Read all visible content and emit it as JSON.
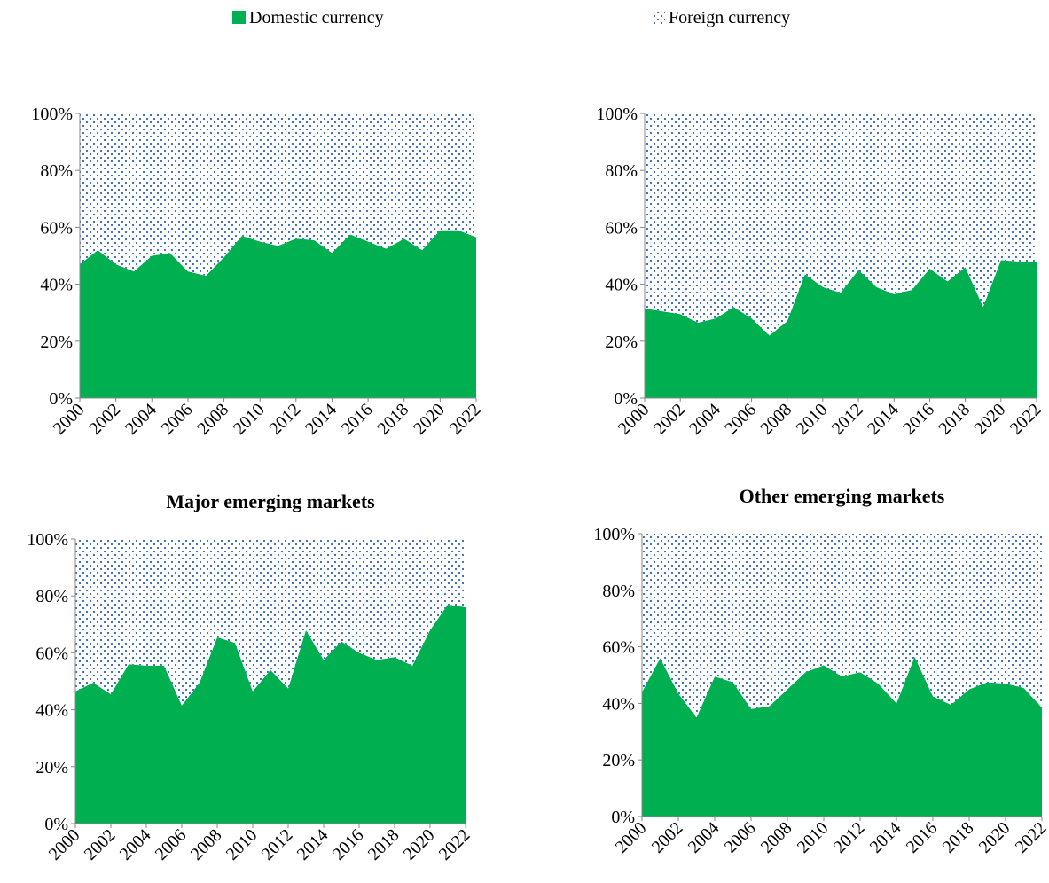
{
  "chart_data": [
    {
      "type": "area",
      "x": [
        2000,
        2001,
        2002,
        2003,
        2004,
        2005,
        2006,
        2007,
        2008,
        2009,
        2010,
        2011,
        2012,
        2013,
        2014,
        2015,
        2016,
        2017,
        2018,
        2019,
        2020,
        2021,
        2022
      ],
      "series": [
        {
          "name": "Domestic currency",
          "color": "#00b050",
          "values": [
            47,
            52,
            47,
            44.5,
            50,
            51,
            44.5,
            43,
            49.5,
            57,
            55,
            53.5,
            56,
            55.5,
            51,
            57.5,
            55,
            52.5,
            56,
            52,
            59,
            59,
            56.5
          ]
        },
        {
          "name": "Foreign currency",
          "color": "#4472c4",
          "values": [
            53,
            48,
            53,
            55.5,
            50,
            49,
            55.5,
            57,
            50.5,
            43,
            45,
            46.5,
            44,
            44.5,
            49,
            42.5,
            45,
            47.5,
            44,
            48,
            41,
            41,
            43.5
          ]
        }
      ],
      "xlim": [
        2000,
        2022
      ],
      "xticks": [
        2000,
        2002,
        2004,
        2006,
        2008,
        2010,
        2012,
        2014,
        2016,
        2018,
        2020,
        2022
      ],
      "ylim": [
        0,
        100
      ],
      "yticks": [
        {
          "value": 0,
          "label": "0%"
        },
        {
          "value": 20,
          "label": "20%"
        },
        {
          "value": 40,
          "label": "40%"
        },
        {
          "value": 60,
          "label": "60%"
        },
        {
          "value": 80,
          "label": "80%"
        },
        {
          "value": 100,
          "label": "100%"
        }
      ],
      "stacked": true
    },
    {
      "type": "area",
      "x": [
        2000,
        2001,
        2002,
        2003,
        2004,
        2005,
        2006,
        2007,
        2008,
        2009,
        2010,
        2011,
        2012,
        2013,
        2014,
        2015,
        2016,
        2017,
        2018,
        2019,
        2020,
        2021,
        2022
      ],
      "series": [
        {
          "color": "#00b050",
          "values": [
            31.5,
            30.5,
            29.5,
            26.5,
            28,
            32,
            28,
            22,
            27,
            43.5,
            39,
            37,
            45,
            39,
            36.5,
            38,
            45.5,
            41,
            46,
            32,
            48.5,
            48,
            48
          ]
        },
        {
          "color": "#4472c4",
          "values": [
            68.5,
            69.5,
            70.5,
            73.5,
            72,
            68,
            72,
            78,
            73,
            56.5,
            61,
            63,
            55,
            61,
            63.5,
            62,
            54.5,
            59,
            54,
            68,
            51.5,
            52,
            52
          ]
        }
      ],
      "xlim": [
        2000,
        2022
      ],
      "xticks": [
        2000,
        2002,
        2004,
        2006,
        2008,
        2010,
        2012,
        2014,
        2016,
        2018,
        2020,
        2022
      ],
      "ylim": [
        0,
        100
      ],
      "yticks": [
        {
          "value": 0,
          "label": "0%"
        },
        {
          "value": 20,
          "label": "20%"
        },
        {
          "value": 40,
          "label": "40%"
        },
        {
          "value": 60,
          "label": "60%"
        },
        {
          "value": 80,
          "label": "80%"
        },
        {
          "value": 100,
          "label": "100%"
        }
      ],
      "stacked": true
    },
    {
      "type": "area",
      "title": "Major emerging markets",
      "x": [
        2000,
        2001,
        2002,
        2003,
        2004,
        2005,
        2006,
        2007,
        2008,
        2009,
        2010,
        2011,
        2012,
        2013,
        2014,
        2015,
        2016,
        2017,
        2018,
        2019,
        2020,
        2021,
        2022
      ],
      "series": [
        {
          "color": "#00b050",
          "values": [
            46.5,
            49.5,
            45.5,
            56,
            55.5,
            55.5,
            41.5,
            49.5,
            65.5,
            63.5,
            46.5,
            54,
            47.5,
            68,
            57.5,
            64,
            60,
            57.5,
            58.5,
            55.5,
            68,
            77,
            76
          ]
        },
        {
          "color": "#4472c4",
          "values": [
            53.5,
            50.5,
            54.5,
            44,
            44.5,
            44.5,
            58.5,
            50.5,
            34.5,
            36.5,
            53.5,
            46,
            52.5,
            32,
            42.5,
            36,
            40,
            42.5,
            41.5,
            44.5,
            32,
            23,
            24
          ]
        }
      ],
      "xlim": [
        2000,
        2022
      ],
      "xticks": [
        2000,
        2002,
        2004,
        2006,
        2008,
        2010,
        2012,
        2014,
        2016,
        2018,
        2020,
        2022
      ],
      "ylim": [
        0,
        100
      ],
      "yticks": [
        {
          "value": 0,
          "label": "0%"
        },
        {
          "value": 20,
          "label": "20%"
        },
        {
          "value": 40,
          "label": "40%"
        },
        {
          "value": 60,
          "label": "60%"
        },
        {
          "value": 80,
          "label": "80%"
        },
        {
          "value": 100,
          "label": "100%"
        }
      ],
      "stacked": true
    },
    {
      "type": "area",
      "title": "Other emerging markets",
      "x": [
        2000,
        2001,
        2002,
        2003,
        2004,
        2005,
        2006,
        2007,
        2008,
        2009,
        2010,
        2011,
        2012,
        2013,
        2014,
        2015,
        2016,
        2017,
        2018,
        2019,
        2020,
        2021,
        2022
      ],
      "series": [
        {
          "color": "#00b050",
          "values": [
            44,
            56,
            43.5,
            35,
            49.5,
            47.5,
            38,
            39,
            45,
            51,
            53.5,
            49.5,
            51,
            47,
            40,
            56.5,
            42.5,
            39.5,
            45,
            47.5,
            47,
            45.5,
            38.5
          ]
        },
        {
          "color": "#4472c4",
          "values": [
            56,
            44,
            56.5,
            65,
            50.5,
            52.5,
            62,
            61,
            55,
            49,
            46.5,
            50.5,
            49,
            53,
            60,
            43.5,
            57.5,
            60.5,
            55,
            52.5,
            53,
            54.5,
            61.5
          ]
        }
      ],
      "xlim": [
        2000,
        2022
      ],
      "xticks": [
        2000,
        2002,
        2004,
        2006,
        2008,
        2010,
        2012,
        2014,
        2016,
        2018,
        2020,
        2022
      ],
      "ylim": [
        0,
        100
      ],
      "yticks": [
        {
          "value": 0,
          "label": "0%"
        },
        {
          "value": 20,
          "label": "20%"
        },
        {
          "value": 40,
          "label": "40%"
        },
        {
          "value": 60,
          "label": "60%"
        },
        {
          "value": 80,
          "label": "80%"
        },
        {
          "value": 100,
          "label": "100%"
        }
      ],
      "stacked": true
    }
  ]
}
